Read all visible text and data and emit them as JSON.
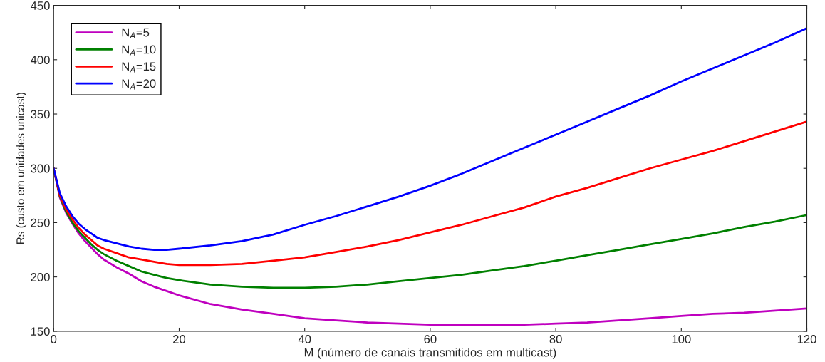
{
  "chart_data": {
    "type": "line",
    "xlabel": "M (número de canais transmitidos em multicast)",
    "ylabel": "Rs (custo em unidades unicast)",
    "x": [
      0,
      1,
      2,
      3,
      4,
      5,
      6,
      7,
      8,
      10,
      12,
      14,
      16,
      18,
      20,
      25,
      30,
      35,
      40,
      45,
      50,
      55,
      60,
      65,
      70,
      75,
      80,
      85,
      90,
      95,
      100,
      105,
      110,
      115,
      120
    ],
    "series": [
      {
        "name": "N$_{A}$=5",
        "color": "#bf00bf",
        "values": [
          300,
          273,
          259,
          249,
          240,
          233,
          227,
          221,
          216,
          209,
          203,
          196,
          191,
          187,
          183,
          175,
          170,
          166,
          162,
          160,
          158,
          157,
          156,
          156,
          156,
          156,
          157,
          158,
          160,
          162,
          164,
          166,
          167,
          169,
          171
        ]
      },
      {
        "name": "N$_{A}$=10",
        "color": "#008000",
        "values": [
          300,
          274,
          260,
          250,
          242,
          236,
          230,
          225,
          221,
          215,
          210,
          205,
          202,
          199,
          197,
          193,
          191,
          190,
          190,
          191,
          193,
          196,
          199,
          202,
          206,
          210,
          215,
          220,
          225,
          230,
          235,
          240,
          246,
          251,
          257
        ]
      },
      {
        "name": "N$_{A}$=15",
        "color": "#ff0000",
        "values": [
          300,
          275,
          262,
          253,
          245,
          239,
          234,
          229,
          226,
          222,
          218,
          216,
          214,
          212,
          211,
          211,
          212,
          215,
          218,
          223,
          228,
          234,
          241,
          248,
          256,
          264,
          274,
          282,
          291,
          300,
          308,
          316,
          325,
          334,
          343
        ]
      },
      {
        "name": "N$_{A}$=20",
        "color": "#0000ff",
        "values": [
          300,
          277,
          265,
          256,
          249,
          244,
          240,
          236,
          234,
          231,
          228,
          226,
          225,
          225,
          226,
          229,
          233,
          239,
          248,
          256,
          265,
          274,
          284,
          295,
          307,
          319,
          331,
          343,
          355,
          367,
          380,
          392,
          404,
          416,
          429
        ]
      }
    ],
    "xlim": [
      0,
      120
    ],
    "ylim": [
      150,
      450
    ],
    "xticks": [
      0,
      20,
      40,
      60,
      80,
      100,
      120
    ],
    "yticks": [
      150,
      200,
      250,
      300,
      350,
      400,
      450
    ],
    "grid": false,
    "legend": "top left",
    "marker": "none",
    "line_style": "solid"
  }
}
